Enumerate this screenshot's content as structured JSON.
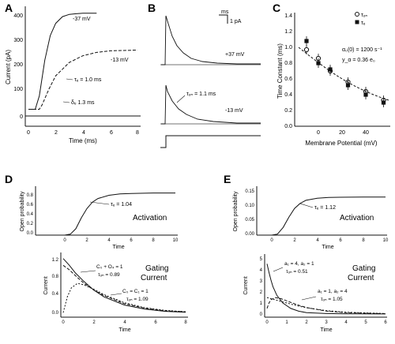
{
  "figure": {
    "panels": {
      "A": {
        "letter": "A",
        "ylabel": "Current (pA)",
        "xlabel": "Time (ms)",
        "yticks": [
          "0",
          "100",
          "200",
          "300",
          "400"
        ],
        "xticks": [
          "0",
          "2",
          "4",
          "6",
          "8"
        ],
        "annotations": {
          "v37": "-37 mV",
          "v13": "-13 mV",
          "tau": "τₑ = 1.0 ms",
          "delta": "δₑ 1.3 ms"
        }
      },
      "B": {
        "letter": "B",
        "scale_time": "ms",
        "scale_current": "1 pA",
        "labels": {
          "p37": "+37 mV",
          "m13": "-13 mV",
          "tau": "τₒₙ = 1.1 ms"
        }
      },
      "C": {
        "letter": "C",
        "ylabel": "Time Constant (ms)",
        "xlabel": "Membrane Potential (mV)",
        "yticks": [
          "0.0",
          "0.2",
          "0.4",
          "0.6",
          "0.8",
          "1.0",
          "1.2",
          "1.4"
        ],
        "xticks": [
          "0",
          "20",
          "40"
        ],
        "legend": {
          "open": "τₒₙ",
          "filled": "τₑ"
        },
        "equations": {
          "line1": "α₀(0) = 1200 s⁻¹",
          "line2": "y_α = 0.36 e₀"
        }
      },
      "D": {
        "letter": "D",
        "top": {
          "ylabel": "Open probability",
          "xlabel": "Time",
          "title": "Activation",
          "yticks": [
            "0.0",
            "0.2",
            "0.4",
            "0.6",
            "0.8"
          ],
          "xticks": [
            "0",
            "2",
            "4",
            "6",
            "8",
            "10"
          ],
          "tau": "τₑ = 1.04"
        },
        "bottom": {
          "ylabel": "Current",
          "xlabel": "Time",
          "title_1": "Gating",
          "title_2": "Current",
          "yticks": [
            "0.0",
            "0.4",
            "0.8",
            "1.2"
          ],
          "xticks": [
            "0",
            "2",
            "4",
            "6",
            "8"
          ],
          "ann1_a": "C₀ + O₄ = 1",
          "ann1_b": "τₒₙ = 0.89",
          "ann2_a": "C₀ = C₁ = 1",
          "ann2_b": "τₒₙ = 1.09"
        }
      },
      "E": {
        "letter": "E",
        "top": {
          "ylabel": "Open probability",
          "xlabel": "Time",
          "title": "Activation",
          "yticks": [
            "0.00",
            "0.05",
            "0.10",
            "0.15"
          ],
          "xticks": [
            "0",
            "2",
            "4",
            "6",
            "8",
            "10"
          ],
          "tau": "τₑ = 1.12"
        },
        "bottom": {
          "ylabel": "Current",
          "xlabel": "Time",
          "title_1": "Gating",
          "title_2": "Current",
          "yticks": [
            "0",
            "1",
            "2",
            "3",
            "4",
            "5"
          ],
          "xticks": [
            "0",
            "1",
            "2",
            "3",
            "4",
            "5",
            "6"
          ],
          "ann1_a": "a₁ = 4, a₂ = 1",
          "ann1_b": "τₒₙ = 0.51",
          "ann2_a": "a₁ = 1, a₂ = 4",
          "ann2_b": "τₒₙ = 1.05"
        }
      }
    }
  },
  "chart_data": [
    {
      "type": "line",
      "panel": "A",
      "xlabel": "Time (ms)",
      "ylabel": "Current (pA)",
      "xlim": [
        0,
        8
      ],
      "ylim": [
        -30,
        440
      ],
      "series": [
        {
          "name": "-37 mV",
          "x": [
            0,
            0.5,
            0.8,
            1.2,
            1.6,
            2,
            2.5,
            3,
            3.5,
            4,
            5
          ],
          "y": [
            0,
            0,
            60,
            220,
            330,
            385,
            415,
            425,
            428,
            430,
            430
          ]
        },
        {
          "name": "-13 mV",
          "x": [
            0,
            0.8,
            1,
            1.5,
            2,
            3,
            4,
            5,
            6,
            8
          ],
          "y": [
            0,
            0,
            20,
            90,
            150,
            210,
            240,
            255,
            262,
            265
          ]
        }
      ]
    },
    {
      "type": "scatter",
      "panel": "C",
      "xlabel": "Membrane Potential (mV)",
      "ylabel": "Time Constant (ms)",
      "xlim": [
        -20,
        60
      ],
      "ylim": [
        0,
        1.4
      ],
      "series": [
        {
          "name": "τₒₙ",
          "x": [
            -10,
            0,
            10,
            25,
            40,
            55
          ],
          "y": [
            0.97,
            0.86,
            0.7,
            0.56,
            0.44,
            0.33
          ]
        },
        {
          "name": "τₑ",
          "x": [
            -10,
            0,
            10,
            25,
            40,
            55
          ],
          "y": [
            1.08,
            0.8,
            0.72,
            0.52,
            0.4,
            0.3
          ]
        }
      ]
    },
    {
      "type": "line",
      "panel": "D-top",
      "xlabel": "Time",
      "ylabel": "Open probability",
      "xlim": [
        0,
        10
      ],
      "ylim": [
        0,
        1
      ],
      "series": [
        {
          "x": [
            0,
            0.5,
            1,
            1.5,
            2,
            2.5,
            3,
            4,
            5,
            6,
            8,
            10
          ],
          "y": [
            0,
            0.02,
            0.14,
            0.38,
            0.58,
            0.72,
            0.8,
            0.87,
            0.9,
            0.91,
            0.92,
            0.92
          ]
        }
      ]
    },
    {
      "type": "line",
      "panel": "D-bottom",
      "xlabel": "Time",
      "ylabel": "Current",
      "xlim": [
        0,
        6
      ],
      "ylim": [
        -0.1,
        1.3
      ],
      "series": [
        {
          "x": [
            0,
            0.3,
            0.6,
            1,
            1.5,
            2,
            3,
            4,
            5,
            6
          ],
          "y": [
            1.2,
            1.05,
            0.88,
            0.7,
            0.5,
            0.35,
            0.17,
            0.08,
            0.03,
            0.01
          ]
        },
        {
          "x": [
            0,
            0.3,
            0.6,
            1,
            1.5,
            2,
            3,
            4,
            5,
            6
          ],
          "y": [
            1.05,
            0.95,
            0.82,
            0.66,
            0.5,
            0.38,
            0.2,
            0.1,
            0.04,
            0.02
          ]
        },
        {
          "x": [
            0,
            0.2,
            0.4,
            0.7,
            1,
            1.5,
            2,
            3,
            4,
            5,
            6
          ],
          "y": [
            0,
            0.35,
            0.55,
            0.65,
            0.62,
            0.52,
            0.4,
            0.22,
            0.11,
            0.05,
            0.02
          ]
        }
      ]
    },
    {
      "type": "line",
      "panel": "E-top",
      "xlabel": "Time",
      "ylabel": "Open probability",
      "xlim": [
        0,
        10
      ],
      "ylim": [
        0,
        0.18
      ],
      "series": [
        {
          "x": [
            0,
            0.5,
            1,
            1.5,
            2,
            2.5,
            3,
            4,
            5,
            6,
            8,
            10
          ],
          "y": [
            0,
            0.004,
            0.03,
            0.07,
            0.105,
            0.125,
            0.137,
            0.145,
            0.148,
            0.149,
            0.15,
            0.15
          ]
        }
      ]
    },
    {
      "type": "line",
      "panel": "E-bottom",
      "xlabel": "Time",
      "ylabel": "Current",
      "xlim": [
        0,
        6
      ],
      "ylim": [
        -0.3,
        5.2
      ],
      "series": [
        {
          "x": [
            0,
            0.1,
            0.2,
            0.3,
            0.5,
            0.8,
            1.2,
            1.6,
            2,
            3,
            4,
            6
          ],
          "y": [
            4.6,
            3.8,
            3.1,
            2.5,
            1.7,
            1.0,
            0.5,
            0.25,
            0.12,
            0.03,
            0.01,
            0
          ]
        },
        {
          "x": [
            0,
            0.1,
            0.2,
            0.4,
            0.7,
            1,
            1.5,
            2,
            3,
            4,
            6
          ],
          "y": [
            0.5,
            1.0,
            1.3,
            1.5,
            1.4,
            1.2,
            0.85,
            0.58,
            0.26,
            0.11,
            0.02
          ]
        },
        {
          "x": [
            0,
            0.2,
            0.5,
            1,
            1.5,
            2,
            3,
            4,
            6
          ],
          "y": [
            1.5,
            1.4,
            1.25,
            1.0,
            0.76,
            0.56,
            0.3,
            0.15,
            0.03
          ]
        }
      ]
    }
  ]
}
